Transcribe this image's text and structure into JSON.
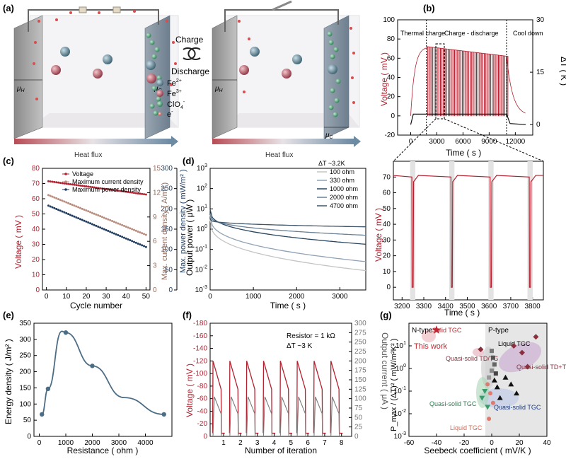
{
  "panels": {
    "a": {
      "label": "(a)",
      "charge": "Charge",
      "discharge": "Discharge",
      "legend": [
        "Fe",
        "Fe",
        "ClO",
        "e"
      ],
      "legend_sup": [
        "2+",
        "3+",
        "4",
        "-"
      ],
      "mu_h": "μ",
      "mu_c": "μ",
      "heat_flux": "Heat flux",
      "colors": {
        "fe2": "#4f7a8c",
        "fe3": "#b24f5d",
        "clo4": "#3f8f66",
        "electron": "#c0392b"
      }
    },
    "b": {
      "label": "(b)",
      "ylabel": "Voltage ( mV )",
      "ylabel2": "ΔT ( K )",
      "xlabel": "Time ( s )",
      "regions": [
        "Thermal charge",
        "Charge - discharge",
        "Cool down"
      ],
      "inset_xlabel": "Time ( s )",
      "inset_ylabel": "Voltage ( mV )"
    },
    "c": {
      "label": "(c)"
    },
    "d": {
      "label": "(d)",
      "annotation": "ΔT ~3.2K"
    },
    "e": {
      "label": "(e)"
    },
    "f": {
      "label": "(f)",
      "annotation1": "Resistor = 1 kΩ",
      "annotation2": "ΔT ~3 K"
    },
    "g": {
      "label": "(g)",
      "ntype": "N-type",
      "ptype": "P-type",
      "labels": [
        "Solid TGC",
        "This work",
        "Liquid TGC",
        "Quasi-solid TD/TG",
        "Quasi-solid TD+TG",
        "Quasi-solid TGC",
        "Quasi-solid TGC",
        "Liquid TGC"
      ]
    }
  },
  "chart_data": [
    {
      "id": "b-main",
      "type": "line",
      "title": "",
      "xlabel": "Time ( s )",
      "ylabel": "Voltage ( mV )",
      "y2label": "ΔT ( K )",
      "xlim": [
        -1500,
        14000
      ],
      "ylim": [
        -20,
        100
      ],
      "y2lim": [
        -3,
        30
      ],
      "xticks": [
        0,
        3000,
        6000,
        9000,
        12000
      ],
      "yticks": [
        -20,
        0,
        20,
        40,
        60,
        80,
        100
      ],
      "y2ticks": [
        0,
        15,
        30
      ],
      "charge_end_time": 1800,
      "cooldown_start_time": 11000,
      "discharge_period_s": 180,
      "voltage_start_mV": 72,
      "voltage_end_mV": 62,
      "deltaT_K": 3,
      "inset_window": [
        3200,
        3850
      ]
    },
    {
      "id": "b-inset",
      "type": "line",
      "xlabel": "Time ( s )",
      "ylabel": "Voltage ( mV )",
      "xlim": [
        3160,
        3850
      ],
      "ylim": [
        -8,
        80
      ],
      "xticks": [
        3200,
        3300,
        3400,
        3500,
        3600,
        3700,
        3800
      ],
      "yticks": [
        0,
        10,
        20,
        30,
        40,
        50,
        60,
        70
      ],
      "discharge_times": [
        3245,
        3425,
        3605,
        3785
      ],
      "plateau_mV": 71,
      "series_color": "#b3212f"
    },
    {
      "id": "c",
      "type": "scatter",
      "xlabel": "Cycle number",
      "ylabel": "Voltage ( mV )",
      "y2label": "Max. current density ( A/m² )",
      "y3label": "Max. power density ( mW/m² )",
      "xlim": [
        -2,
        52
      ],
      "ylim": [
        0,
        80
      ],
      "y2lim": [
        0,
        15
      ],
      "y3lim": [
        0,
        300
      ],
      "xticks": [
        0,
        10,
        20,
        30,
        40,
        50
      ],
      "yticks": [
        0,
        10,
        20,
        30,
        40,
        50,
        60,
        70,
        80
      ],
      "y2ticks": [
        0,
        3,
        6,
        9,
        12,
        15
      ],
      "y3ticks": [
        0,
        50,
        100,
        150,
        200,
        250,
        300
      ],
      "series": [
        {
          "name": "Voltage",
          "axis": "y",
          "color": "#b3212f",
          "start": 71.5,
          "end": 62.8
        },
        {
          "name": "Maximum current density",
          "axis": "y2",
          "color": "#b88d7d",
          "start": 11.7,
          "end": 6.8
        },
        {
          "name": "Maximum power density",
          "axis": "y3",
          "color": "#1f3b5e",
          "start": 208,
          "end": 106
        }
      ]
    },
    {
      "id": "d",
      "type": "line",
      "xlabel": "Time ( s )",
      "ylabel": "Output power ( μW )",
      "yscale": "log",
      "xlim": [
        0,
        3600
      ],
      "ylim_exp": [
        -3,
        3
      ],
      "xticks": [
        0,
        1000,
        2000,
        3000
      ],
      "yticks_exp": [
        -3,
        -2,
        -1,
        0,
        1,
        2,
        3
      ],
      "series": [
        {
          "name": "100 ohm",
          "color": "#c4c4c4",
          "start": 3.0,
          "end": 0.009
        },
        {
          "name": "330 ohm",
          "color": "#8fa2b5",
          "start": 5.0,
          "end": 0.025
        },
        {
          "name": "1000 ohm",
          "color": "#284661",
          "start": 9.0,
          "end": 0.18
        },
        {
          "name": "2000 ohm",
          "color": "#6a8097",
          "start": 5.0,
          "end": 0.5
        },
        {
          "name": "4700 ohm",
          "color": "#3d5469",
          "start": 3.0,
          "end": 1.3
        }
      ]
    },
    {
      "id": "e",
      "type": "line",
      "xlabel": "Resistance ( ohm )",
      "ylabel": "Energy density ( J/m² )",
      "xlim": [
        -200,
        5000
      ],
      "ylim": [
        0,
        350
      ],
      "xticks": [
        0,
        1000,
        2000,
        3000,
        4000
      ],
      "yticks": [
        0,
        50,
        100,
        150,
        200,
        250,
        300,
        350
      ],
      "xtick_labels": [
        "0",
        "1000",
        "2000",
        "3000",
        "4000"
      ],
      "x": [
        100,
        330,
        1000,
        2000,
        4700
      ],
      "y": [
        68,
        147,
        321,
        218,
        68
      ],
      "curve_peak": [
        850,
        325
      ],
      "color": "#4c6d86"
    },
    {
      "id": "f",
      "type": "line",
      "xlabel": "Number of iteration",
      "ylabel": "Voltage ( mV )",
      "y2label": "Output current ( μA )",
      "ylim": [
        0,
        -180
      ],
      "y2lim": [
        0,
        300
      ],
      "yticks": [
        0,
        -20,
        -40,
        -60,
        -80,
        -100,
        -120,
        -140,
        -160,
        -180
      ],
      "y2ticks": [
        0,
        25,
        50,
        75,
        100,
        125,
        150,
        175,
        200,
        225,
        250,
        275,
        300
      ],
      "xticks": [
        1,
        2,
        3,
        4,
        5,
        6,
        7,
        8
      ],
      "peak_voltage_mV": -120,
      "peak_current_uA": 105,
      "series": [
        {
          "name": "Voltage",
          "color": "#b3212f"
        },
        {
          "name": "Output current",
          "color": "#7c7c7c"
        }
      ]
    },
    {
      "id": "g",
      "type": "scatter",
      "xlabel": "Seebeck coefficient ( mV/K )",
      "ylabel": "P_max / (ΔT)² ( mW/m²K² )",
      "yscale": "log",
      "xlim": [
        -60,
        40
      ],
      "ylim_exp": [
        -3,
        2
      ],
      "xticks": [
        -60,
        -40,
        -20,
        0,
        20,
        40
      ],
      "yticks_exp": [
        -3,
        -2,
        -1,
        0,
        1
      ],
      "points": [
        {
          "x": -40,
          "y": 50,
          "marker": "star",
          "color": "#c0262f",
          "group": "This work"
        },
        {
          "x": -8,
          "y": 7,
          "marker": "diamond",
          "color": "#8a2f3d",
          "group": "Quasi-solid TD/TG"
        },
        {
          "x": 16,
          "y": 10,
          "marker": "diamond",
          "color": "#8a2f3d",
          "group": "Quasi-solid TD+TG"
        },
        {
          "x": 22,
          "y": 5,
          "marker": "diamond",
          "color": "#8a2f3d",
          "group": "Quasi-solid TD+TG"
        },
        {
          "x": 32,
          "y": 25,
          "marker": "diamond",
          "color": "#8a2f3d",
          "group": "Quasi-solid TD+TG"
        },
        {
          "x": 26,
          "y": 1.2,
          "marker": "diamond",
          "color": "#8a2f3d",
          "group": "Quasi-solid TD+TG"
        },
        {
          "x": 0,
          "y": 6,
          "marker": "square",
          "color": "#777777",
          "group": "Liquid TGC"
        },
        {
          "x": 1,
          "y": 3,
          "marker": "square",
          "color": "#555555",
          "group": "Liquid TGC"
        },
        {
          "x": 2,
          "y": 1.5,
          "marker": "square",
          "color": "#666666",
          "group": "Liquid TGC"
        },
        {
          "x": 0,
          "y": 0.8,
          "marker": "square",
          "color": "#888888",
          "group": "Liquid TGC"
        },
        {
          "x": 3,
          "y": 0.6,
          "marker": "square",
          "color": "#444444",
          "group": "Liquid TGC"
        },
        {
          "x": -2,
          "y": 0.4,
          "marker": "square",
          "color": "#999999",
          "group": "Liquid TGC"
        },
        {
          "x": -3,
          "y": 0.2,
          "marker": "circle",
          "color": "#e07a6e",
          "group": "Liquid TGC"
        },
        {
          "x": -1,
          "y": 0.08,
          "marker": "circle",
          "color": "#e07a6e",
          "group": "Liquid TGC"
        },
        {
          "x": 1,
          "y": 0.03,
          "marker": "circle",
          "color": "#e07a6e",
          "group": "Liquid TGC"
        },
        {
          "x": -2,
          "y": 0.006,
          "marker": "circle",
          "color": "#e07a6e",
          "group": "Liquid TGC"
        },
        {
          "x": -5,
          "y": 0.1,
          "marker": "triangle-down",
          "color": "#3a9b6a",
          "group": "Quasi-solid TGC"
        },
        {
          "x": -7,
          "y": 0.05,
          "marker": "triangle-down",
          "color": "#3a9b6a",
          "group": "Quasi-solid TGC"
        },
        {
          "x": -3,
          "y": 0.02,
          "marker": "triangle-down",
          "color": "#3a9b6a",
          "group": "Quasi-solid TGC"
        },
        {
          "x": 2,
          "y": 0.3,
          "marker": "triangle",
          "color": "#111111",
          "group": "Quasi-solid TGC"
        },
        {
          "x": 4,
          "y": 0.15,
          "marker": "triangle",
          "color": "#111111",
          "group": "Quasi-solid TGC"
        },
        {
          "x": 10,
          "y": 0.4,
          "marker": "triangle",
          "color": "#111111",
          "group": "Quasi-solid TGC"
        },
        {
          "x": 14,
          "y": 0.2,
          "marker": "triangle",
          "color": "#111111",
          "group": "Quasi-solid TGC"
        },
        {
          "x": 6,
          "y": 0.05,
          "marker": "triangle",
          "color": "#111111",
          "group": "Quasi-solid TGC"
        },
        {
          "x": 18,
          "y": 0.08,
          "marker": "triangle",
          "color": "#111111",
          "group": "Quasi-solid TGC"
        }
      ]
    }
  ]
}
